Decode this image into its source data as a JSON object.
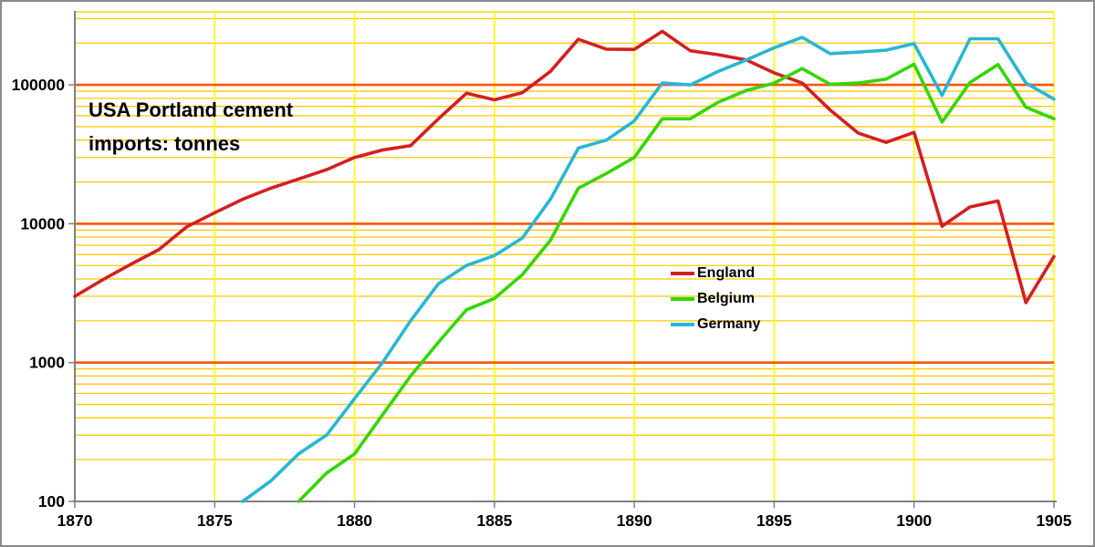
{
  "window": {
    "background": "#ffffff",
    "border_color": "#8a8a8a"
  },
  "title": {
    "line1": "USA Portland cement",
    "line2": "imports: tonnes"
  },
  "chart_data": {
    "type": "line",
    "title": "USA Portland cement imports: tonnes",
    "y_scale": "log",
    "x_range": [
      1870,
      1905
    ],
    "y_range": [
      100,
      340000
    ],
    "x_ticks": [
      "1870",
      "1875",
      "1880",
      "1885",
      "1890",
      "1895",
      "1900",
      "1905"
    ],
    "x_tick_years": [
      1870,
      1875,
      1880,
      1885,
      1890,
      1895,
      1900,
      1905
    ],
    "y_ticks": [
      "100",
      "1000",
      "10000",
      "100000"
    ],
    "y_tick_values": [
      100,
      1000,
      10000,
      100000
    ],
    "grid": {
      "minor_color": "#ffc800",
      "major_color": "#ff5500",
      "vertical_color": "#ffff00",
      "top_frame_color": "#ffd700",
      "extra_minor_values": [
        200000,
        300000
      ]
    },
    "axis_color": "#808080",
    "legend_position": "middle-right",
    "legend_order": [
      "England",
      "Belgium",
      "Germany"
    ],
    "series": [
      {
        "name": "England",
        "color": "#d32020",
        "start_year": 1870,
        "values": [
          3000,
          3950,
          5100,
          6500,
          9500,
          12000,
          15000,
          18000,
          21000,
          24500,
          30000,
          34000,
          36500,
          57000,
          87000,
          78000,
          88000,
          125000,
          213000,
          181000,
          180000,
          243000,
          176000,
          165000,
          151000,
          122000,
          103000,
          66000,
          45000,
          38500,
          45500,
          9600,
          13200,
          14600,
          2700,
          5800
        ]
      },
      {
        "name": "Belgium",
        "color": "#35d600",
        "start_year": 1878,
        "values": [
          100,
          160,
          220,
          420,
          800,
          1400,
          2400,
          2900,
          4300,
          7600,
          18000,
          23000,
          30000,
          57000,
          57000,
          75000,
          91000,
          103000,
          131000,
          101000,
          103000,
          110000,
          141000,
          54000,
          104000,
          140000,
          69000,
          57000
        ]
      },
      {
        "name": "Germany",
        "color": "#29b6d4",
        "start_year": 1876,
        "values": [
          100,
          140,
          220,
          300,
          550,
          1000,
          2000,
          3700,
          5000,
          5900,
          7900,
          15000,
          35000,
          40000,
          55000,
          103000,
          100000,
          125000,
          151000,
          185000,
          220000,
          168000,
          172000,
          178000,
          198000,
          84000,
          215000,
          215000,
          103000,
          79000
        ]
      }
    ]
  }
}
